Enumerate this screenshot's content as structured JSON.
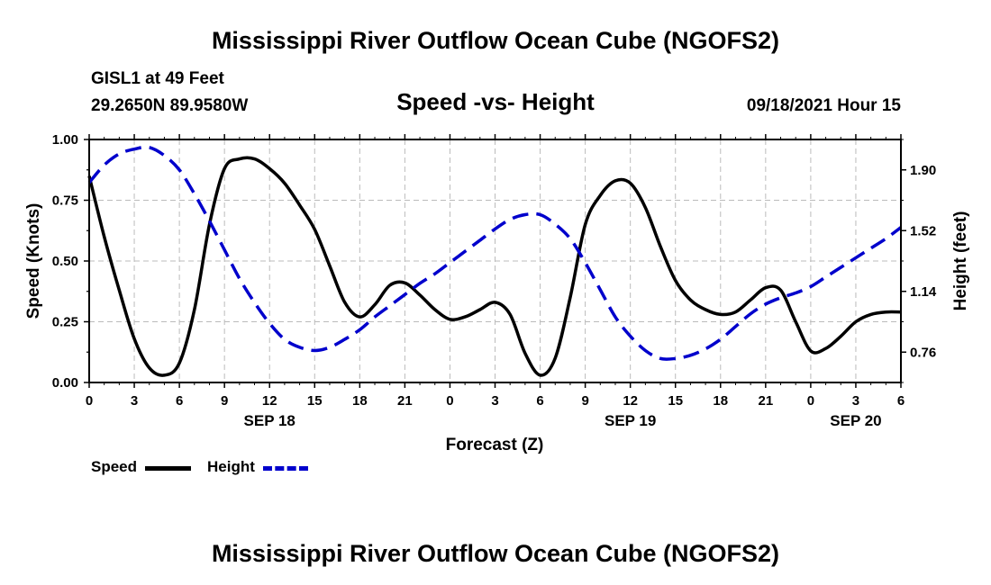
{
  "header": {
    "title": "Mississippi River Outflow Ocean Cube (NGOFS2)",
    "station": "GISL1 at 49 Feet",
    "coords": "29.2650N  89.9580W",
    "subtitle": "Speed -vs- Height",
    "datetime": "09/18/2021 Hour 15",
    "footer_title": "Mississippi River Outflow Ocean Cube (NGOFS2)"
  },
  "legend": {
    "speed_label": "Speed",
    "height_label": "Height"
  },
  "colors": {
    "speed": "#000000",
    "height": "#0000cc",
    "grid": "#bbbbbb"
  },
  "chart_data": {
    "type": "line",
    "title": "Speed -vs- Height",
    "xlabel": "Forecast (Z)",
    "ylabel": "Speed (Knots)",
    "y2label": "Height (feet)",
    "xlim": [
      0,
      54
    ],
    "ylim": [
      0,
      1.0
    ],
    "y2lim": [
      0.57,
      2.09
    ],
    "x_ticks": [
      0,
      3,
      6,
      9,
      12,
      15,
      18,
      21,
      24,
      27,
      30,
      33,
      36,
      39,
      42,
      45,
      48,
      51,
      54
    ],
    "x_tick_labels": [
      "0",
      "3",
      "6",
      "9",
      "12",
      "15",
      "18",
      "21",
      "0",
      "3",
      "6",
      "9",
      "12",
      "15",
      "18",
      "21",
      "0",
      "3",
      "6"
    ],
    "date_labels": [
      {
        "x": 12,
        "label": "SEP 18"
      },
      {
        "x": 36,
        "label": "SEP 19"
      },
      {
        "x": 51,
        "label": "SEP 20"
      }
    ],
    "y_ticks": [
      0,
      0.25,
      0.5,
      0.75,
      1.0
    ],
    "y_tick_labels": [
      "0.00",
      "0.25",
      "0.50",
      "0.75",
      "1.00"
    ],
    "y2_ticks": [
      0.76,
      1.14,
      1.52,
      1.9
    ],
    "y2_tick_labels": [
      "0.76",
      "1.14",
      "1.52",
      "1.90"
    ],
    "grid": true,
    "series": [
      {
        "name": "Speed",
        "axis": "left",
        "style": "solid",
        "points": [
          [
            0,
            0.85
          ],
          [
            1,
            0.6
          ],
          [
            2,
            0.38
          ],
          [
            3,
            0.18
          ],
          [
            4,
            0.06
          ],
          [
            5,
            0.03
          ],
          [
            6,
            0.08
          ],
          [
            7,
            0.3
          ],
          [
            8,
            0.65
          ],
          [
            9,
            0.88
          ],
          [
            10,
            0.92
          ],
          [
            11,
            0.92
          ],
          [
            12,
            0.88
          ],
          [
            13,
            0.82
          ],
          [
            14,
            0.73
          ],
          [
            15,
            0.63
          ],
          [
            16,
            0.48
          ],
          [
            17,
            0.33
          ],
          [
            18,
            0.27
          ],
          [
            19,
            0.32
          ],
          [
            20,
            0.4
          ],
          [
            21,
            0.41
          ],
          [
            22,
            0.36
          ],
          [
            23,
            0.3
          ],
          [
            24,
            0.26
          ],
          [
            25,
            0.27
          ],
          [
            26,
            0.3
          ],
          [
            27,
            0.33
          ],
          [
            28,
            0.28
          ],
          [
            29,
            0.12
          ],
          [
            30,
            0.03
          ],
          [
            31,
            0.1
          ],
          [
            32,
            0.35
          ],
          [
            33,
            0.65
          ],
          [
            34,
            0.77
          ],
          [
            35,
            0.83
          ],
          [
            36,
            0.82
          ],
          [
            37,
            0.72
          ],
          [
            38,
            0.56
          ],
          [
            39,
            0.42
          ],
          [
            40,
            0.34
          ],
          [
            41,
            0.3
          ],
          [
            42,
            0.28
          ],
          [
            43,
            0.29
          ],
          [
            44,
            0.34
          ],
          [
            45,
            0.39
          ],
          [
            46,
            0.38
          ],
          [
            47,
            0.25
          ],
          [
            48,
            0.13
          ],
          [
            49,
            0.14
          ],
          [
            50,
            0.19
          ],
          [
            51,
            0.25
          ],
          [
            52,
            0.28
          ],
          [
            53,
            0.29
          ],
          [
            54,
            0.29
          ]
        ]
      },
      {
        "name": "Height",
        "axis": "right",
        "style": "dashed",
        "points": [
          [
            0,
            1.82
          ],
          [
            1,
            1.93
          ],
          [
            2,
            2.0
          ],
          [
            3,
            2.03
          ],
          [
            4,
            2.04
          ],
          [
            5,
            1.99
          ],
          [
            6,
            1.9
          ],
          [
            7,
            1.75
          ],
          [
            8,
            1.58
          ],
          [
            9,
            1.4
          ],
          [
            10,
            1.22
          ],
          [
            11,
            1.07
          ],
          [
            12,
            0.94
          ],
          [
            13,
            0.84
          ],
          [
            14,
            0.79
          ],
          [
            15,
            0.77
          ],
          [
            16,
            0.79
          ],
          [
            17,
            0.84
          ],
          [
            18,
            0.9
          ],
          [
            19,
            0.98
          ],
          [
            20,
            1.05
          ],
          [
            21,
            1.12
          ],
          [
            22,
            1.19
          ],
          [
            23,
            1.25
          ],
          [
            24,
            1.32
          ],
          [
            25,
            1.39
          ],
          [
            26,
            1.46
          ],
          [
            27,
            1.53
          ],
          [
            28,
            1.59
          ],
          [
            29,
            1.62
          ],
          [
            30,
            1.62
          ],
          [
            31,
            1.56
          ],
          [
            32,
            1.47
          ],
          [
            33,
            1.32
          ],
          [
            34,
            1.15
          ],
          [
            35,
            0.98
          ],
          [
            36,
            0.86
          ],
          [
            37,
            0.77
          ],
          [
            38,
            0.72
          ],
          [
            39,
            0.72
          ],
          [
            40,
            0.74
          ],
          [
            41,
            0.78
          ],
          [
            42,
            0.84
          ],
          [
            43,
            0.92
          ],
          [
            44,
            1.0
          ],
          [
            45,
            1.06
          ],
          [
            46,
            1.1
          ],
          [
            47,
            1.13
          ],
          [
            48,
            1.17
          ],
          [
            49,
            1.23
          ],
          [
            50,
            1.29
          ],
          [
            51,
            1.35
          ],
          [
            52,
            1.41
          ],
          [
            53,
            1.47
          ],
          [
            54,
            1.54
          ]
        ]
      }
    ]
  }
}
